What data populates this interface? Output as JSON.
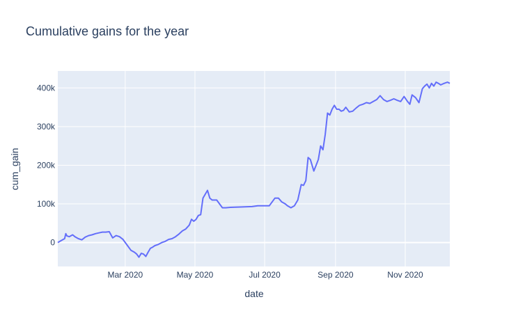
{
  "chart_data": {
    "type": "line",
    "title": "Cumulative gains for the year",
    "xlabel": "date",
    "ylabel": "cum_gain",
    "x_ticks": [
      "Mar 2020",
      "May 2020",
      "Jul 2020",
      "Sep 2020",
      "Nov 2020"
    ],
    "y_ticks": [
      "0",
      "100k",
      "200k",
      "300k",
      "400k"
    ],
    "y_tick_values": [
      0,
      100000,
      200000,
      300000,
      400000
    ],
    "x_range": [
      "2020-01-02",
      "2020-12-10"
    ],
    "y_range": [
      -62000,
      444000
    ],
    "grid": true,
    "legend": "none",
    "line_color": "#636efa",
    "plot_bg": "#e5ecf6",
    "series": [
      {
        "x": [
          "2020-01-02",
          "2020-01-05",
          "2020-01-08",
          "2020-01-09",
          "2020-01-10",
          "2020-01-12",
          "2020-01-15",
          "2020-01-17",
          "2020-01-20",
          "2020-01-23",
          "2020-01-26",
          "2020-01-29",
          "2020-02-01",
          "2020-02-04",
          "2020-02-07",
          "2020-02-10",
          "2020-02-13",
          "2020-02-16",
          "2020-02-19",
          "2020-02-22",
          "2020-02-25",
          "2020-02-28",
          "2020-03-03",
          "2020-03-06",
          "2020-03-09",
          "2020-03-11",
          "2020-03-13",
          "2020-03-15",
          "2020-03-17",
          "2020-03-19",
          "2020-03-21",
          "2020-03-23",
          "2020-03-25",
          "2020-03-27",
          "2020-03-30",
          "2020-04-02",
          "2020-04-05",
          "2020-04-08",
          "2020-04-11",
          "2020-04-14",
          "2020-04-17",
          "2020-04-20",
          "2020-04-23",
          "2020-04-26",
          "2020-04-28",
          "2020-04-30",
          "2020-05-02",
          "2020-05-04",
          "2020-05-06",
          "2020-05-08",
          "2020-05-10",
          "2020-05-12",
          "2020-05-14",
          "2020-05-16",
          "2020-05-20",
          "2020-05-25",
          "2020-05-28",
          "2020-06-01",
          "2020-06-10",
          "2020-06-20",
          "2020-06-25",
          "2020-06-30",
          "2020-07-05",
          "2020-07-10",
          "2020-07-13",
          "2020-07-16",
          "2020-07-19",
          "2020-07-21",
          "2020-07-24",
          "2020-07-27",
          "2020-07-30",
          "2020-08-02",
          "2020-08-04",
          "2020-08-06",
          "2020-08-08",
          "2020-08-10",
          "2020-08-13",
          "2020-08-15",
          "2020-08-17",
          "2020-08-19",
          "2020-08-21",
          "2020-08-23",
          "2020-08-25",
          "2020-08-27",
          "2020-08-29",
          "2020-08-31",
          "2020-09-02",
          "2020-09-04",
          "2020-09-06",
          "2020-09-08",
          "2020-09-10",
          "2020-09-13",
          "2020-09-16",
          "2020-09-19",
          "2020-09-22",
          "2020-09-25",
          "2020-09-28",
          "2020-10-01",
          "2020-10-04",
          "2020-10-07",
          "2020-10-10",
          "2020-10-13",
          "2020-10-16",
          "2020-10-19",
          "2020-10-22",
          "2020-10-25",
          "2020-10-28",
          "2020-10-31",
          "2020-11-03",
          "2020-11-05",
          "2020-11-07",
          "2020-11-10",
          "2020-11-13",
          "2020-11-16",
          "2020-11-18",
          "2020-11-20",
          "2020-11-22",
          "2020-11-24",
          "2020-11-26",
          "2020-11-28",
          "2020-11-30",
          "2020-12-02",
          "2020-12-05",
          "2020-12-08",
          "2020-12-10"
        ],
        "y": [
          0,
          5000,
          10000,
          23000,
          17000,
          15000,
          20000,
          15000,
          10000,
          7000,
          14000,
          18000,
          20000,
          23000,
          25000,
          27000,
          27000,
          28000,
          12000,
          18000,
          15000,
          8000,
          -8000,
          -20000,
          -25000,
          -30000,
          -38000,
          -28000,
          -30000,
          -36000,
          -25000,
          -15000,
          -12000,
          -8000,
          -5000,
          0,
          3000,
          8000,
          10000,
          15000,
          22000,
          30000,
          35000,
          45000,
          60000,
          55000,
          60000,
          70000,
          72000,
          115000,
          125000,
          135000,
          115000,
          110000,
          110000,
          90000,
          90000,
          91000,
          92000,
          93000,
          95000,
          95000,
          95000,
          115000,
          115000,
          105000,
          100000,
          95000,
          90000,
          95000,
          110000,
          150000,
          148000,
          160000,
          220000,
          215000,
          185000,
          200000,
          215000,
          250000,
          240000,
          280000,
          335000,
          330000,
          345000,
          355000,
          345000,
          345000,
          340000,
          342000,
          350000,
          338000,
          340000,
          348000,
          355000,
          358000,
          362000,
          360000,
          365000,
          370000,
          380000,
          370000,
          365000,
          368000,
          372000,
          368000,
          365000,
          378000,
          365000,
          358000,
          382000,
          375000,
          362000,
          398000,
          405000,
          410000,
          400000,
          412000,
          405000,
          415000,
          412000,
          408000,
          412000,
          415000,
          412000
        ]
      }
    ]
  }
}
